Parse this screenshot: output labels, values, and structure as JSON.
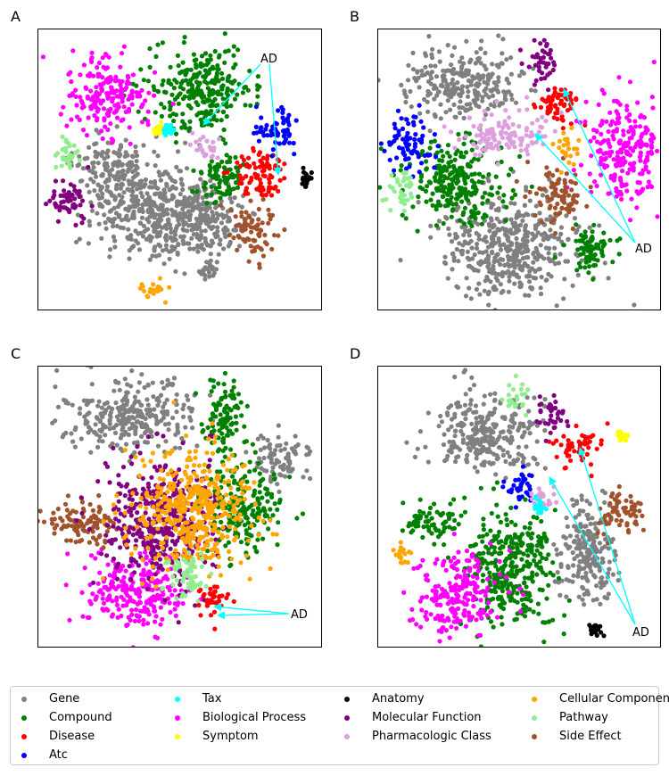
{
  "colors": {
    "Gene": "#808080",
    "Compound": "#008000",
    "Disease": "#ff0000",
    "Atc": "#0000ff",
    "Tax": "#00ffff",
    "Biological Process": "#ff00ff",
    "Symptom": "#ffff00",
    "Anatomy": "#000000",
    "Molecular Function": "#800080",
    "Pharmacologic Class": "#dda0dd",
    "Cellular Component": "#ffa500",
    "Pathway": "#90ee90",
    "Side Effect": "#a0522d",
    "annotation_arrow": "#00ffff"
  },
  "legend": {
    "columns": [
      [
        "Gene",
        "Compound",
        "Disease",
        "Atc"
      ],
      [
        "Tax",
        "Biological Process",
        "Symptom"
      ],
      [
        "Anatomy",
        "Molecular Function",
        "Pharmacologic Class"
      ],
      [
        "Cellular Component",
        "Pathway",
        "Side Effect"
      ]
    ]
  },
  "chart_data": [
    {
      "type": "scatter",
      "panel_label": "A",
      "annotation": "AD",
      "axes": {
        "xticks": [],
        "yticks": []
      },
      "clusters": [
        {
          "category": "Gene",
          "center": [
            0.42,
            0.66
          ],
          "size": [
            0.2,
            0.16
          ]
        },
        {
          "category": "Gene",
          "center": [
            0.28,
            0.5
          ],
          "size": [
            0.14,
            0.1
          ]
        },
        {
          "category": "Gene",
          "center": [
            0.6,
            0.67
          ],
          "size": [
            0.1,
            0.12
          ]
        },
        {
          "category": "Gene",
          "center": [
            0.6,
            0.86
          ],
          "size": [
            0.04,
            0.04
          ]
        },
        {
          "category": "Compound",
          "center": [
            0.58,
            0.22
          ],
          "size": [
            0.16,
            0.14
          ]
        },
        {
          "category": "Compound",
          "center": [
            0.65,
            0.53
          ],
          "size": [
            0.08,
            0.08
          ]
        },
        {
          "category": "Disease",
          "center": [
            0.79,
            0.52
          ],
          "size": [
            0.09,
            0.08
          ]
        },
        {
          "category": "Atc",
          "center": [
            0.85,
            0.37
          ],
          "size": [
            0.07,
            0.07
          ]
        },
        {
          "category": "Biological Process",
          "center": [
            0.25,
            0.24
          ],
          "size": [
            0.13,
            0.12
          ]
        },
        {
          "category": "Pathway",
          "center": [
            0.1,
            0.45
          ],
          "size": [
            0.05,
            0.05
          ]
        },
        {
          "category": "Molecular Function",
          "center": [
            0.11,
            0.62
          ],
          "size": [
            0.06,
            0.08
          ]
        },
        {
          "category": "Side Effect",
          "center": [
            0.76,
            0.72
          ],
          "size": [
            0.07,
            0.09
          ]
        },
        {
          "category": "Cellular Component",
          "center": [
            0.41,
            0.92
          ],
          "size": [
            0.05,
            0.04
          ]
        },
        {
          "category": "Anatomy",
          "center": [
            0.95,
            0.54
          ],
          "size": [
            0.02,
            0.03
          ]
        },
        {
          "category": "Pharmacologic Class",
          "center": [
            0.59,
            0.42
          ],
          "size": [
            0.05,
            0.04
          ]
        },
        {
          "category": "Symptom",
          "center": [
            0.43,
            0.36
          ],
          "size": [
            0.02,
            0.02
          ]
        },
        {
          "category": "Tax",
          "center": [
            0.46,
            0.36
          ],
          "size": [
            0.015,
            0.015
          ]
        }
      ]
    },
    {
      "type": "scatter",
      "panel_label": "B",
      "annotation": "AD",
      "axes": {
        "xticks": [],
        "yticks": []
      },
      "clusters": [
        {
          "category": "Gene",
          "center": [
            0.3,
            0.2
          ],
          "size": [
            0.18,
            0.12
          ]
        },
        {
          "category": "Gene",
          "center": [
            0.47,
            0.78
          ],
          "size": [
            0.22,
            0.17
          ]
        },
        {
          "category": "Compound",
          "center": [
            0.28,
            0.55
          ],
          "size": [
            0.16,
            0.13
          ]
        },
        {
          "category": "Compound",
          "center": [
            0.75,
            0.78
          ],
          "size": [
            0.08,
            0.08
          ]
        },
        {
          "category": "Disease",
          "center": [
            0.65,
            0.27
          ],
          "size": [
            0.08,
            0.06
          ]
        },
        {
          "category": "Atc",
          "center": [
            0.11,
            0.41
          ],
          "size": [
            0.08,
            0.08
          ]
        },
        {
          "category": "Biological Process",
          "center": [
            0.87,
            0.42
          ],
          "size": [
            0.12,
            0.16
          ]
        },
        {
          "category": "Pathway",
          "center": [
            0.1,
            0.57
          ],
          "size": [
            0.05,
            0.06
          ]
        },
        {
          "category": "Molecular Function",
          "center": [
            0.58,
            0.12
          ],
          "size": [
            0.05,
            0.07
          ]
        },
        {
          "category": "Side Effect",
          "center": [
            0.64,
            0.59
          ],
          "size": [
            0.08,
            0.09
          ]
        },
        {
          "category": "Cellular Component",
          "center": [
            0.67,
            0.43
          ],
          "size": [
            0.04,
            0.05
          ]
        },
        {
          "category": "Pharmacologic Class",
          "center": [
            0.45,
            0.38
          ],
          "size": [
            0.14,
            0.07
          ]
        }
      ]
    },
    {
      "type": "scatter",
      "panel_label": "C",
      "annotation": "AD",
      "axes": {
        "xticks": [],
        "yticks": []
      },
      "clusters": [
        {
          "category": "Gene",
          "center": [
            0.33,
            0.18
          ],
          "size": [
            0.2,
            0.12
          ]
        },
        {
          "category": "Gene",
          "center": [
            0.86,
            0.33
          ],
          "size": [
            0.09,
            0.08
          ]
        },
        {
          "category": "Compound",
          "center": [
            0.66,
            0.18
          ],
          "size": [
            0.07,
            0.12
          ]
        },
        {
          "category": "Compound",
          "center": [
            0.72,
            0.5
          ],
          "size": [
            0.12,
            0.14
          ]
        },
        {
          "category": "Biological Process",
          "center": [
            0.35,
            0.8
          ],
          "size": [
            0.17,
            0.12
          ]
        },
        {
          "category": "Side Effect",
          "center": [
            0.17,
            0.57
          ],
          "size": [
            0.13,
            0.07
          ]
        },
        {
          "category": "Molecular Function",
          "center": [
            0.43,
            0.55
          ],
          "size": [
            0.17,
            0.2
          ]
        },
        {
          "category": "Cellular Component",
          "center": [
            0.55,
            0.52
          ],
          "size": [
            0.18,
            0.2
          ]
        },
        {
          "category": "Pathway",
          "center": [
            0.52,
            0.75
          ],
          "size": [
            0.07,
            0.07
          ]
        },
        {
          "category": "Disease",
          "center": [
            0.62,
            0.84
          ],
          "size": [
            0.05,
            0.06
          ]
        }
      ]
    },
    {
      "type": "scatter",
      "panel_label": "D",
      "annotation": "AD",
      "axes": {
        "xticks": [],
        "yticks": []
      },
      "clusters": [
        {
          "category": "Gene",
          "center": [
            0.38,
            0.24
          ],
          "size": [
            0.18,
            0.13
          ]
        },
        {
          "category": "Gene",
          "center": [
            0.74,
            0.66
          ],
          "size": [
            0.1,
            0.17
          ]
        },
        {
          "category": "Compound",
          "center": [
            0.48,
            0.72
          ],
          "size": [
            0.14,
            0.2
          ]
        },
        {
          "category": "Compound",
          "center": [
            0.2,
            0.55
          ],
          "size": [
            0.1,
            0.06
          ]
        },
        {
          "category": "Biological Process",
          "center": [
            0.28,
            0.82
          ],
          "size": [
            0.13,
            0.14
          ]
        },
        {
          "category": "Disease",
          "center": [
            0.71,
            0.3
          ],
          "size": [
            0.07,
            0.06
          ]
        },
        {
          "category": "Atc",
          "center": [
            0.5,
            0.43
          ],
          "size": [
            0.06,
            0.05
          ]
        },
        {
          "category": "Side Effect",
          "center": [
            0.87,
            0.51
          ],
          "size": [
            0.08,
            0.07
          ]
        },
        {
          "category": "Pathway",
          "center": [
            0.49,
            0.1
          ],
          "size": [
            0.04,
            0.05
          ]
        },
        {
          "category": "Molecular Function",
          "center": [
            0.62,
            0.17
          ],
          "size": [
            0.05,
            0.06
          ]
        },
        {
          "category": "Cellular Component",
          "center": [
            0.09,
            0.67
          ],
          "size": [
            0.03,
            0.04
          ]
        },
        {
          "category": "Pharmacologic Class",
          "center": [
            0.58,
            0.48
          ],
          "size": [
            0.04,
            0.05
          ]
        },
        {
          "category": "Symptom",
          "center": [
            0.87,
            0.25
          ],
          "size": [
            0.02,
            0.02
          ]
        },
        {
          "category": "Anatomy",
          "center": [
            0.77,
            0.94
          ],
          "size": [
            0.02,
            0.02
          ]
        },
        {
          "category": "Tax",
          "center": [
            0.57,
            0.5
          ],
          "size": [
            0.02,
            0.02
          ]
        }
      ]
    }
  ]
}
